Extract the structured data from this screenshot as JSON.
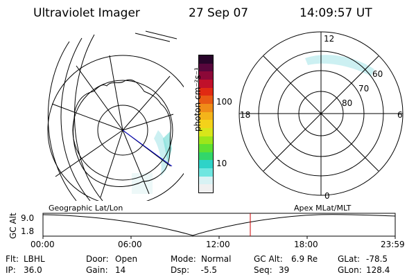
{
  "header": {
    "instrument": "Ultraviolet Imager",
    "date": "27 Sep 07",
    "time": "14:09:57 UT"
  },
  "colorbar": {
    "unit_label": "photon cm⁻²s⁻¹",
    "ticks": [
      "100",
      "10"
    ],
    "colors": [
      "#f0f0f0",
      "#d8f2f4",
      "#6ee6e0",
      "#2ed3c8",
      "#32d66a",
      "#5ee032",
      "#9ce61a",
      "#d8e61a",
      "#f4d21a",
      "#f4b41a",
      "#f08c18",
      "#e85a14",
      "#e02a12",
      "#c0102a",
      "#8c0838",
      "#58063c",
      "#28042a"
    ]
  },
  "geo_panel": {
    "name": "Geographic Lat/Lon"
  },
  "mag_panel": {
    "name": "Apex MLat/MLT",
    "mlt_labels": [
      "12",
      "18",
      "6",
      "0"
    ],
    "lat_labels": [
      "60",
      "70",
      "80"
    ]
  },
  "timeline": {
    "y_label": "GC Alt",
    "y_ticks": [
      "9.0",
      "1.8"
    ],
    "x_ticks": [
      "00:00",
      "06:00",
      "12:00",
      "18:00",
      "23:59"
    ],
    "cursor_color": "#cc0000"
  },
  "status": {
    "row1": [
      {
        "label": "Flt:",
        "value": "LBHL"
      },
      {
        "label": "Door:",
        "value": "Open"
      },
      {
        "label": "Mode:",
        "value": "Normal"
      },
      {
        "label": "GC Alt:",
        "value": "6.9 Re"
      },
      {
        "label": "GLat:",
        "value": "-78.5"
      }
    ],
    "row2": [
      {
        "label": "IP:",
        "value": "36.0"
      },
      {
        "label": "Gain:",
        "value": "14"
      },
      {
        "label": "Dsp:",
        "value": "  -5.5"
      },
      {
        "label": "Seq:",
        "value": "39"
      },
      {
        "label": "GLon:",
        "value": "128.4"
      }
    ]
  }
}
